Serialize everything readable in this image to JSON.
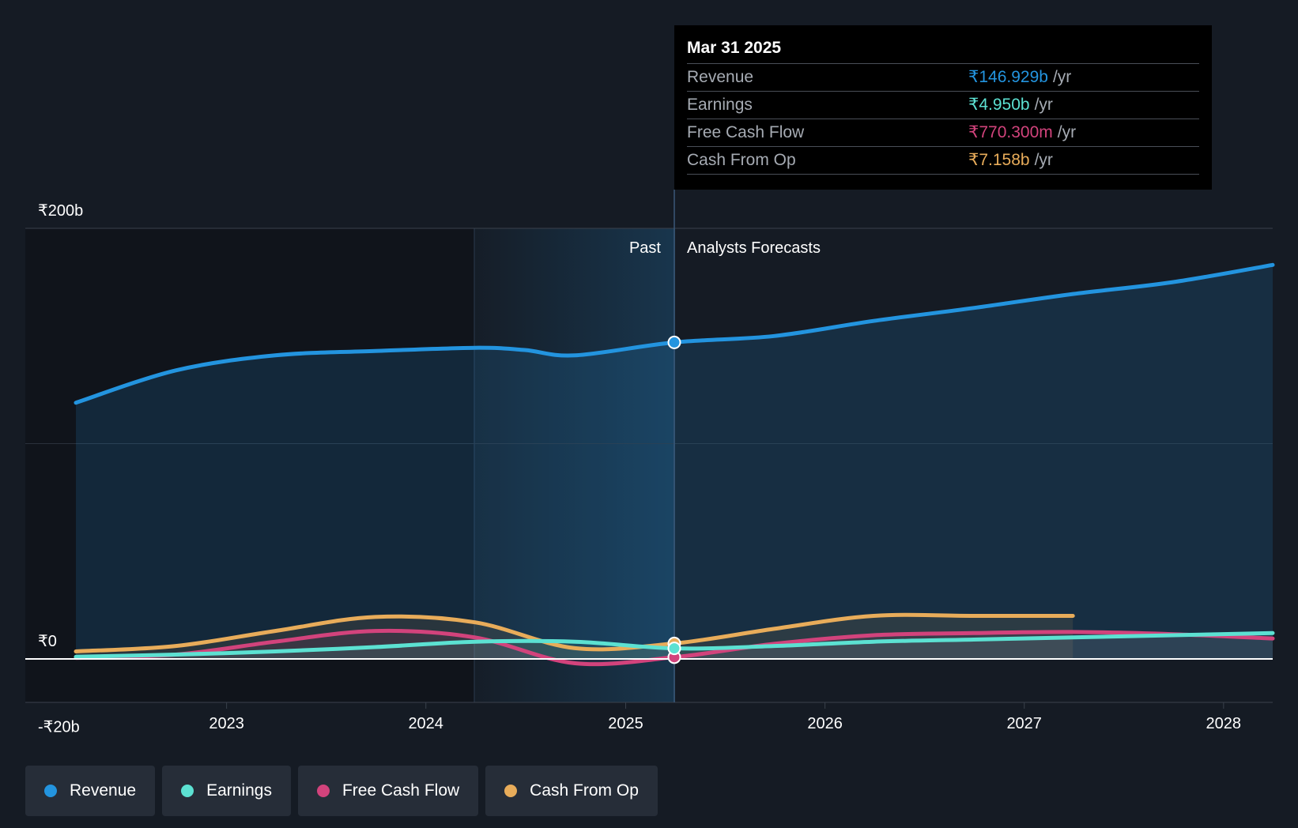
{
  "chart_data": {
    "type": "area",
    "x_ticks": [
      "2023",
      "2024",
      "2025",
      "2026",
      "2027",
      "2028"
    ],
    "y_ticks": [
      "₹200b",
      "₹0",
      "-₹20b"
    ],
    "ylim": [
      -20,
      200
    ],
    "y_unit": "b",
    "xlim": [
      "2022-03-31",
      "2028-03-31"
    ],
    "divider_date": "2025-03-31",
    "past_label": "Past",
    "forecast_label": "Analysts Forecasts",
    "colors": {
      "revenue": "#2394df",
      "earnings": "#5ce1d2",
      "free_cash_flow": "#d2437c",
      "cash_from_op": "#e8ac5a"
    },
    "series": [
      {
        "name": "Revenue",
        "key": "revenue",
        "x": [
          "2022-03-31",
          "2022-09-30",
          "2023-03-31",
          "2023-09-30",
          "2024-03-31",
          "2024-06-30",
          "2024-09-30",
          "2025-03-31",
          "2025-09-30",
          "2026-03-31",
          "2026-09-30",
          "2027-03-31",
          "2027-09-30",
          "2028-03-31"
        ],
        "y": [
          119,
          134,
          141,
          143,
          144.5,
          143.5,
          141,
          147,
          150,
          157,
          163,
          169.5,
          175,
          183
        ]
      },
      {
        "name": "Earnings",
        "key": "earnings",
        "x": [
          "2022-03-31",
          "2022-09-30",
          "2023-03-31",
          "2023-09-30",
          "2024-03-31",
          "2024-09-30",
          "2025-03-31",
          "2025-09-30",
          "2026-03-31",
          "2026-09-30",
          "2027-03-31",
          "2027-09-30",
          "2028-03-31"
        ],
        "y": [
          1,
          2,
          3.5,
          5.5,
          8,
          8,
          4.9,
          6,
          8,
          9,
          10,
          11,
          12
        ]
      },
      {
        "name": "Free Cash Flow",
        "key": "free_cash_flow",
        "x": [
          "2022-03-31",
          "2022-09-30",
          "2023-03-31",
          "2023-09-30",
          "2024-03-31",
          "2024-09-30",
          "2025-03-31",
          "2025-09-30",
          "2026-03-31",
          "2026-09-30",
          "2027-03-31",
          "2027-09-30",
          "2028-03-31"
        ],
        "y": [
          0.5,
          2,
          8,
          13,
          10,
          -2,
          0.8,
          7,
          11,
          12,
          12.5,
          11.5,
          9.5
        ]
      },
      {
        "name": "Cash From Op",
        "key": "cash_from_op",
        "x": [
          "2022-03-31",
          "2022-09-30",
          "2023-03-31",
          "2023-09-30",
          "2024-03-31",
          "2024-09-30",
          "2025-03-31",
          "2025-09-30",
          "2026-03-31",
          "2026-09-30",
          "2027-03-31"
        ],
        "y": [
          3.5,
          6,
          13,
          19.5,
          17,
          5,
          7.2,
          14,
          20,
          20,
          20
        ]
      }
    ]
  },
  "tooltip": {
    "date": "Mar 31 2025",
    "rows": [
      {
        "label": "Revenue",
        "value": "₹146.929b",
        "unit": "/yr",
        "color": "#2394df"
      },
      {
        "label": "Earnings",
        "value": "₹4.950b",
        "unit": "/yr",
        "color": "#5ce1d2"
      },
      {
        "label": "Free Cash Flow",
        "value": "₹770.300m",
        "unit": "/yr",
        "color": "#d2437c"
      },
      {
        "label": "Cash From Op",
        "value": "₹7.158b",
        "unit": "/yr",
        "color": "#e8ac5a"
      }
    ]
  },
  "legend": [
    {
      "label": "Revenue",
      "color": "#2394df"
    },
    {
      "label": "Earnings",
      "color": "#5ce1d2"
    },
    {
      "label": "Free Cash Flow",
      "color": "#d2437c"
    },
    {
      "label": "Cash From Op",
      "color": "#e8ac5a"
    }
  ]
}
